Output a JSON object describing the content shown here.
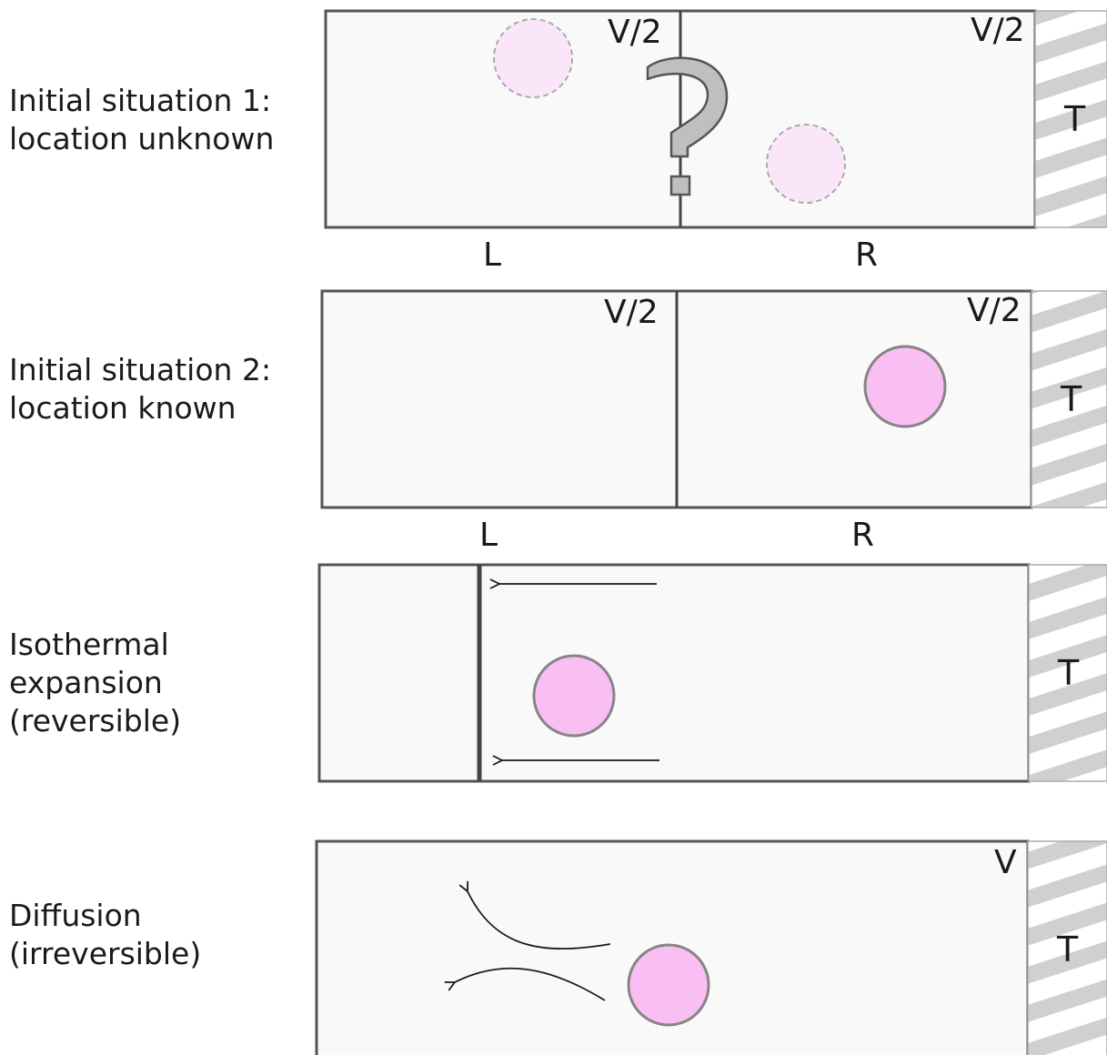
{
  "colors": {
    "box_fill": "#f9f9f9",
    "box_stroke": "#555555",
    "particle_fill": "#f9bff3",
    "particle_faint_fill": "#fbe6f9",
    "particle_stroke": "#858585",
    "reservoir_stripe": "#d0d0d0",
    "question_mark_fill": "#bfbfbf",
    "arrow_stroke": "#1a1a1a"
  },
  "rows": [
    {
      "caption": [
        "Initial situation 1:",
        "location unknown"
      ],
      "left_volume": "V/2",
      "right_volume": "V/2",
      "left_side": "L",
      "right_side": "R",
      "reservoir": "T",
      "question_mark_icon": "question-mark-icon"
    },
    {
      "caption": [
        "Initial situation 2:",
        "location known"
      ],
      "left_volume": "V/2",
      "right_volume": "V/2",
      "left_side": "L",
      "right_side": "R",
      "reservoir": "T"
    },
    {
      "caption": [
        "Isothermal",
        "expansion",
        "(reversible)"
      ],
      "reservoir": "T"
    },
    {
      "caption": [
        "Diffusion",
        "(irreversible)"
      ],
      "volume": "V",
      "reservoir": "T"
    }
  ]
}
